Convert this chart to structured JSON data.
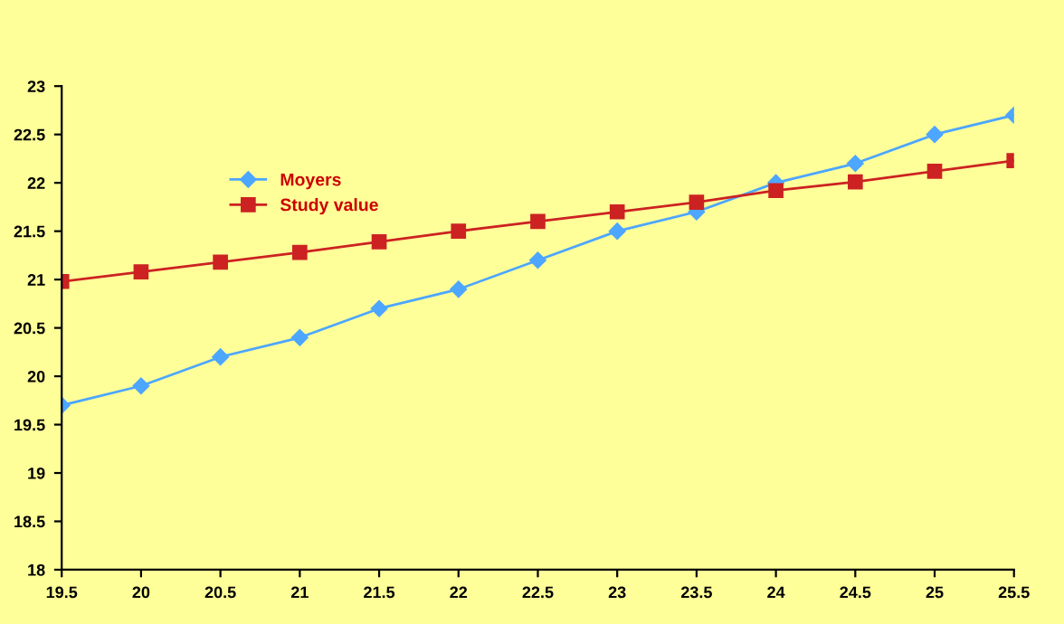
{
  "chart_data": {
    "type": "line",
    "x": [
      19.5,
      20,
      20.5,
      21,
      21.5,
      22,
      22.5,
      23,
      23.5,
      24,
      24.5,
      25,
      25.5
    ],
    "series": [
      {
        "name": "Moyers",
        "color": "#4da6ff",
        "marker": "diamond",
        "values": [
          19.7,
          19.9,
          20.2,
          20.4,
          20.7,
          20.9,
          21.2,
          21.5,
          21.7,
          22.0,
          22.2,
          22.5,
          22.7
        ]
      },
      {
        "name": "Study value",
        "color": "#cc2222",
        "marker": "square",
        "values": [
          20.98,
          21.08,
          21.18,
          21.28,
          21.39,
          21.5,
          21.6,
          21.7,
          21.8,
          21.92,
          22.01,
          22.12,
          22.23
        ]
      }
    ],
    "xlim": [
      19.5,
      25.5
    ],
    "xticks": [
      19.5,
      20,
      20.5,
      21,
      21.5,
      22,
      22.5,
      23,
      23.5,
      24,
      24.5,
      25,
      25.5
    ],
    "ylim": [
      18,
      23
    ],
    "yticks": [
      18,
      18.5,
      19,
      19.5,
      20,
      20.5,
      21,
      21.5,
      22,
      22.5,
      23
    ],
    "grid": false,
    "legend": "top left",
    "line_style": "solid"
  }
}
